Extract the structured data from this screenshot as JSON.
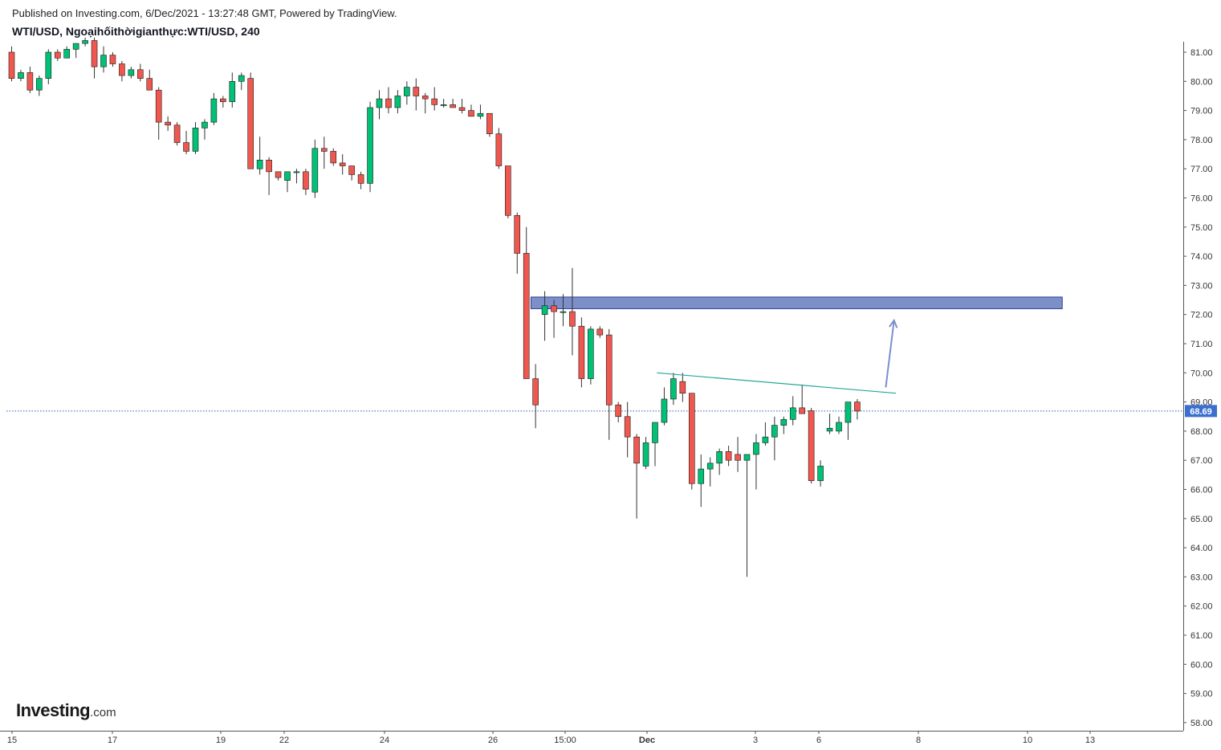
{
  "header": {
    "publish_line": "Published on Investing.com, 6/Dec/2021 - 13:27:48 GMT, Powered by TradingView.",
    "symbol_line": "WTI/USD, Ngoạihốithờigianthực:WTI/USD, 240"
  },
  "brand": {
    "name": "Investing",
    "suffix": ".com"
  },
  "colors": {
    "up": "#26a69a",
    "up_fill": "#00c176",
    "down": "#ef5350",
    "down_fill": "#f0584f",
    "wick": "#333333",
    "zone_fill": "#7d8fc9",
    "zone_stroke": "#2e3f8f",
    "trendline": "#26a69a",
    "arrow": "#7b8fce",
    "price_line": "#2b5fad",
    "price_label_bg": "#3a6fd0"
  },
  "chart_data": {
    "type": "candlestick",
    "title": "WTI/USD, Ngoạihốithờigianthực:WTI/USD, 240",
    "interval": "240",
    "y_axis": {
      "position": "right",
      "range": [
        57.8,
        81.4
      ],
      "ticks": [
        "81.00",
        "80.00",
        "79.00",
        "78.00",
        "77.00",
        "76.00",
        "75.00",
        "74.00",
        "73.00",
        "72.00",
        "71.00",
        "70.00",
        "69.00",
        "68.00",
        "67.00",
        "66.00",
        "65.00",
        "64.00",
        "63.00",
        "62.00",
        "61.00",
        "60.00",
        "59.00",
        "58.00"
      ]
    },
    "x_axis": {
      "ticks": [
        {
          "label": "15",
          "bold": false
        },
        {
          "label": "17",
          "bold": false
        },
        {
          "label": "19",
          "bold": false
        },
        {
          "label": "22",
          "bold": false
        },
        {
          "label": "24",
          "bold": false
        },
        {
          "label": "26",
          "bold": false
        },
        {
          "label": "15:00",
          "bold": false
        },
        {
          "label": "Dec",
          "bold": true
        },
        {
          "label": "3",
          "bold": false
        },
        {
          "label": "6",
          "bold": false
        },
        {
          "label": "8",
          "bold": false
        },
        {
          "label": "10",
          "bold": false
        },
        {
          "label": "13",
          "bold": false
        }
      ]
    },
    "current_price": "68.69",
    "candles": [
      [
        81.0,
        81.2,
        80.0,
        80.1
      ],
      [
        80.1,
        80.4,
        80.0,
        80.3
      ],
      [
        80.3,
        80.5,
        79.6,
        79.7
      ],
      [
        79.7,
        80.2,
        79.5,
        80.1
      ],
      [
        80.1,
        81.1,
        79.9,
        81.0
      ],
      [
        81.0,
        81.1,
        80.7,
        80.8
      ],
      [
        80.8,
        81.2,
        80.8,
        81.1
      ],
      [
        81.1,
        81.3,
        80.8,
        81.3
      ],
      [
        81.3,
        81.5,
        81.2,
        81.4
      ],
      [
        81.4,
        81.5,
        80.1,
        80.5
      ],
      [
        80.5,
        81.2,
        80.3,
        80.9
      ],
      [
        80.9,
        81.0,
        80.5,
        80.6
      ],
      [
        80.6,
        80.7,
        80.0,
        80.2
      ],
      [
        80.2,
        80.5,
        80.1,
        80.4
      ],
      [
        80.4,
        80.6,
        80.0,
        80.1
      ],
      [
        80.1,
        80.4,
        79.7,
        79.7
      ],
      [
        79.7,
        79.8,
        78.0,
        78.6
      ],
      [
        78.6,
        78.8,
        78.3,
        78.5
      ],
      [
        78.5,
        78.6,
        77.8,
        77.9
      ],
      [
        77.9,
        78.3,
        77.5,
        77.6
      ],
      [
        77.6,
        78.6,
        77.5,
        78.4
      ],
      [
        78.4,
        78.7,
        78.0,
        78.6
      ],
      [
        78.6,
        79.6,
        78.5,
        79.4
      ],
      [
        79.4,
        79.5,
        79.1,
        79.3
      ],
      [
        79.3,
        80.3,
        79.1,
        80.0
      ],
      [
        80.0,
        80.3,
        79.7,
        80.2
      ],
      [
        80.1,
        80.3,
        77.0,
        77.0
      ],
      [
        77.0,
        78.1,
        76.8,
        77.3
      ],
      [
        77.3,
        77.4,
        76.1,
        76.9
      ],
      [
        76.9,
        76.9,
        76.6,
        76.7
      ],
      [
        76.6,
        76.8,
        76.2,
        76.9
      ],
      [
        76.9,
        77.0,
        76.5,
        76.9
      ],
      [
        76.9,
        77.0,
        76.1,
        76.3
      ],
      [
        76.2,
        78.0,
        76.0,
        77.7
      ],
      [
        77.7,
        78.1,
        77.0,
        77.6
      ],
      [
        77.6,
        77.7,
        77.1,
        77.2
      ],
      [
        77.2,
        77.5,
        76.8,
        77.1
      ],
      [
        77.1,
        77.1,
        76.6,
        76.8
      ],
      [
        76.8,
        76.9,
        76.3,
        76.5
      ],
      [
        76.5,
        79.3,
        76.2,
        79.1
      ],
      [
        79.1,
        79.7,
        78.7,
        79.4
      ],
      [
        79.4,
        79.8,
        78.9,
        79.1
      ],
      [
        79.1,
        79.7,
        78.9,
        79.5
      ],
      [
        79.5,
        80.0,
        79.2,
        79.8
      ],
      [
        79.8,
        80.1,
        79.0,
        79.5
      ],
      [
        79.5,
        79.6,
        78.9,
        79.4
      ],
      [
        79.4,
        79.8,
        79.0,
        79.2
      ],
      [
        79.2,
        79.4,
        79.1,
        79.2
      ],
      [
        79.2,
        79.4,
        79.1,
        79.1
      ],
      [
        79.1,
        79.4,
        78.9,
        79.0
      ],
      [
        79.0,
        79.2,
        78.9,
        78.8
      ],
      [
        78.8,
        79.2,
        78.7,
        78.9
      ],
      [
        78.9,
        78.9,
        78.1,
        78.2
      ],
      [
        78.2,
        78.4,
        77.0,
        77.1
      ],
      [
        77.1,
        77.1,
        75.3,
        75.4
      ],
      [
        75.4,
        75.5,
        73.4,
        74.1
      ],
      [
        74.1,
        75.0,
        69.8,
        69.8
      ],
      [
        69.8,
        70.3,
        68.1,
        68.9
      ],
      [
        72.0,
        72.8,
        71.1,
        72.3
      ],
      [
        72.3,
        72.5,
        71.2,
        72.1
      ],
      [
        72.1,
        72.7,
        71.6,
        72.1
      ],
      [
        72.1,
        73.6,
        70.6,
        71.6
      ],
      [
        71.6,
        71.9,
        69.5,
        69.8
      ],
      [
        69.8,
        71.6,
        69.6,
        71.5
      ],
      [
        71.5,
        71.6,
        71.2,
        71.3
      ],
      [
        71.3,
        71.5,
        67.7,
        68.9
      ],
      [
        68.9,
        69.0,
        68.3,
        68.5
      ],
      [
        68.5,
        69.0,
        67.1,
        67.8
      ],
      [
        67.8,
        67.9,
        65.0,
        66.9
      ],
      [
        66.8,
        67.8,
        66.7,
        67.6
      ],
      [
        67.6,
        68.2,
        66.8,
        68.3
      ],
      [
        68.3,
        69.5,
        68.2,
        69.1
      ],
      [
        69.1,
        70.0,
        68.9,
        69.8
      ],
      [
        69.7,
        70.0,
        69.0,
        69.3
      ],
      [
        69.3,
        69.3,
        66.0,
        66.2
      ],
      [
        66.2,
        67.2,
        65.4,
        66.7
      ],
      [
        66.7,
        67.1,
        66.1,
        66.9
      ],
      [
        66.9,
        67.4,
        66.5,
        67.3
      ],
      [
        67.3,
        67.5,
        66.8,
        67.0
      ],
      [
        67.2,
        67.8,
        66.6,
        67.0
      ],
      [
        67.0,
        67.2,
        63.0,
        67.2
      ],
      [
        67.2,
        67.9,
        66.0,
        67.6
      ],
      [
        67.6,
        68.3,
        67.5,
        67.8
      ],
      [
        67.8,
        68.5,
        67.0,
        68.2
      ],
      [
        68.2,
        68.5,
        67.9,
        68.4
      ],
      [
        68.4,
        69.2,
        68.2,
        68.8
      ],
      [
        68.8,
        69.6,
        68.6,
        68.6
      ],
      [
        68.7,
        68.8,
        66.2,
        66.3
      ],
      [
        66.3,
        67.0,
        66.1,
        66.8
      ],
      [
        68.0,
        68.6,
        67.9,
        68.1
      ],
      [
        68.0,
        68.5,
        67.9,
        68.3
      ],
      [
        68.3,
        69.0,
        67.7,
        69.0
      ],
      [
        69.0,
        69.1,
        68.4,
        68.69
      ]
    ],
    "annotations": {
      "resistance_zone": {
        "from_bar": 56.5,
        "to_bar": 114.3,
        "low": 72.2,
        "high": 72.6
      },
      "trendline": {
        "from_bar": 70.2,
        "from_price": 70.0,
        "to_bar": 96.2,
        "to_price": 69.3
      },
      "arrow": {
        "from_bar": 95.1,
        "from_price": 69.5,
        "to_bar": 96.0,
        "to_price": 71.8
      }
    }
  }
}
